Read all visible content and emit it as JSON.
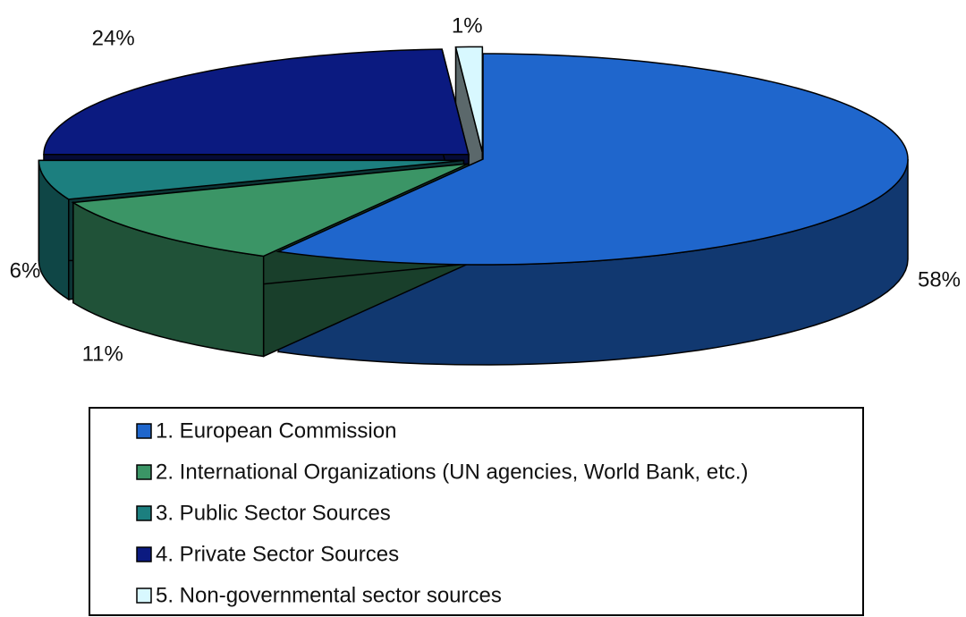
{
  "chart_data": {
    "type": "pie",
    "three_d": true,
    "start_angle_deg": 90,
    "direction": "clockwise",
    "slices": [
      {
        "label": "1. European Commission",
        "value": 58,
        "data_label": "58%",
        "color": "#1f66cc",
        "exploded": false
      },
      {
        "label": "2. International Organizations (UN agencies, World Bank, etc.)",
        "value": 11,
        "data_label": "11%",
        "color": "#3b9566",
        "exploded": true
      },
      {
        "label": "3. Public Sector Sources",
        "value": 6,
        "data_label": "6%",
        "color": "#1c7f7f",
        "exploded": true
      },
      {
        "label": "4. Private Sector Sources",
        "value": 24,
        "data_label": "24%",
        "color": "#0b1a80",
        "exploded": true
      },
      {
        "label": "5. Non-governmental sector sources",
        "value": 1,
        "data_label": "1%",
        "color": "#d8f8ff",
        "exploded": true
      }
    ],
    "legend_position": "bottom"
  }
}
